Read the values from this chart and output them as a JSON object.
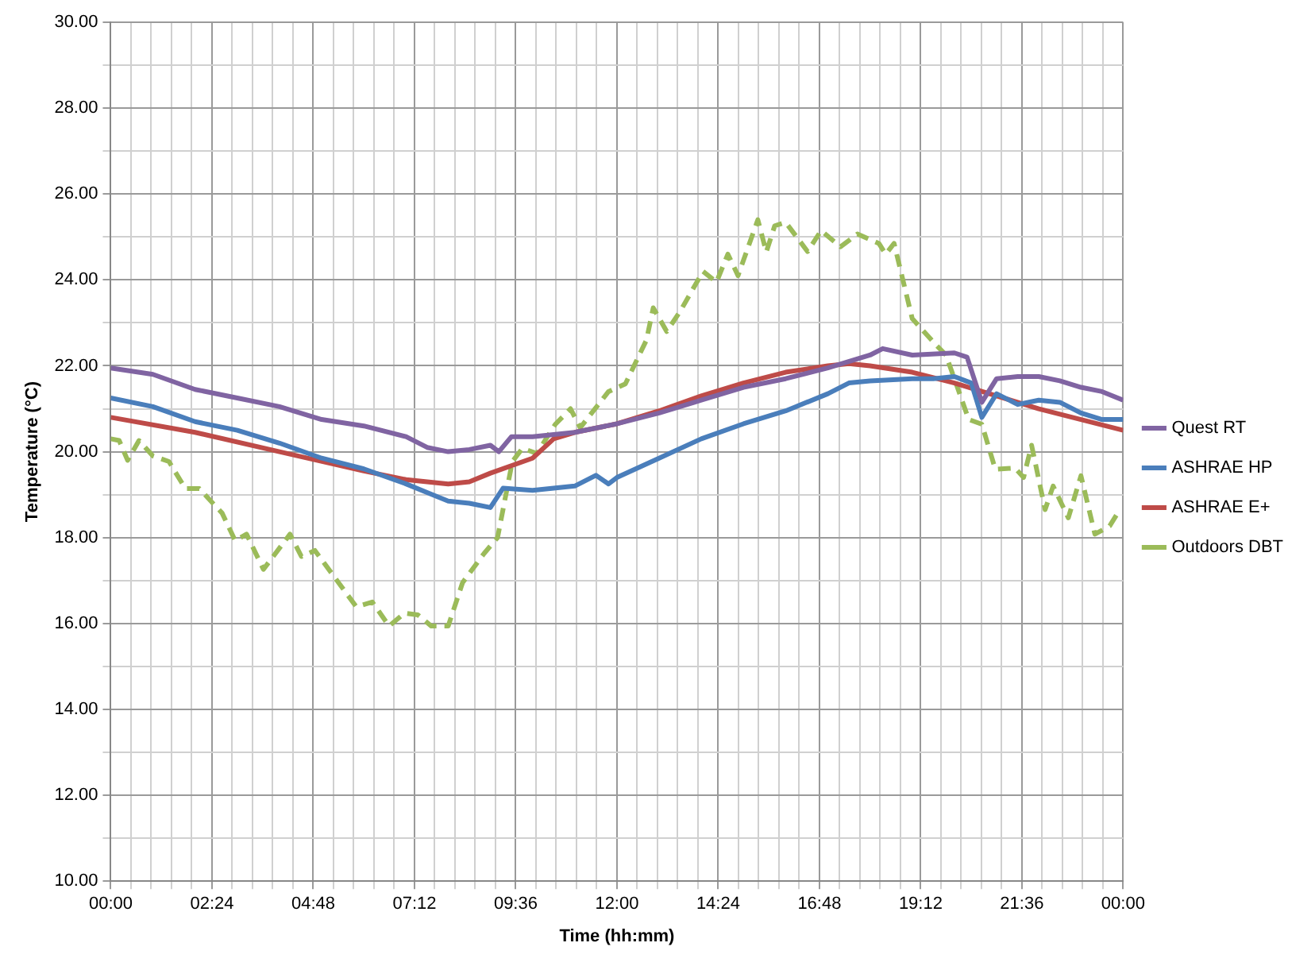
{
  "chart_data": {
    "type": "line",
    "xlabel": "Time (hh:mm)",
    "ylabel": "Temperature (°C)",
    "xlim": [
      0,
      24
    ],
    "ylim": [
      10,
      30
    ],
    "xticks": [
      {
        "value": 0,
        "label": "00:00"
      },
      {
        "value": 0.48,
        "label": null
      },
      {
        "value": 0.96,
        "label": null
      },
      {
        "value": 1.44,
        "label": null
      },
      {
        "value": 1.92,
        "label": null
      },
      {
        "value": 2.4,
        "label": "02:24"
      },
      {
        "value": 2.88,
        "label": null
      },
      {
        "value": 3.36,
        "label": null
      },
      {
        "value": 3.84,
        "label": null
      },
      {
        "value": 4.32,
        "label": null
      },
      {
        "value": 4.8,
        "label": "04:48"
      },
      {
        "value": 5.28,
        "label": null
      },
      {
        "value": 5.76,
        "label": null
      },
      {
        "value": 6.24,
        "label": null
      },
      {
        "value": 6.72,
        "label": null
      },
      {
        "value": 7.2,
        "label": "07:12"
      },
      {
        "value": 7.68,
        "label": null
      },
      {
        "value": 8.16,
        "label": null
      },
      {
        "value": 8.64,
        "label": null
      },
      {
        "value": 9.12,
        "label": null
      },
      {
        "value": 9.6,
        "label": "09:36"
      },
      {
        "value": 10.08,
        "label": null
      },
      {
        "value": 10.56,
        "label": null
      },
      {
        "value": 11.04,
        "label": null
      },
      {
        "value": 11.52,
        "label": null
      },
      {
        "value": 12,
        "label": "12:00"
      },
      {
        "value": 12.48,
        "label": null
      },
      {
        "value": 12.96,
        "label": null
      },
      {
        "value": 13.44,
        "label": null
      },
      {
        "value": 13.92,
        "label": null
      },
      {
        "value": 14.4,
        "label": "14:24"
      },
      {
        "value": 14.88,
        "label": null
      },
      {
        "value": 15.36,
        "label": null
      },
      {
        "value": 15.84,
        "label": null
      },
      {
        "value": 16.32,
        "label": null
      },
      {
        "value": 16.8,
        "label": "16:48"
      },
      {
        "value": 17.28,
        "label": null
      },
      {
        "value": 17.76,
        "label": null
      },
      {
        "value": 18.24,
        "label": null
      },
      {
        "value": 18.72,
        "label": null
      },
      {
        "value": 19.2,
        "label": "19:12"
      },
      {
        "value": 19.68,
        "label": null
      },
      {
        "value": 20.16,
        "label": null
      },
      {
        "value": 20.64,
        "label": null
      },
      {
        "value": 21.12,
        "label": null
      },
      {
        "value": 21.6,
        "label": "21:36"
      },
      {
        "value": 22.08,
        "label": null
      },
      {
        "value": 22.56,
        "label": null
      },
      {
        "value": 23.04,
        "label": null
      },
      {
        "value": 23.52,
        "label": null
      },
      {
        "value": 24,
        "label": "00:00"
      }
    ],
    "yticks": [
      {
        "value": 10,
        "label": "10.00"
      },
      {
        "value": 11,
        "label": null
      },
      {
        "value": 12,
        "label": "12.00"
      },
      {
        "value": 13,
        "label": null
      },
      {
        "value": 14,
        "label": "14.00"
      },
      {
        "value": 15,
        "label": null
      },
      {
        "value": 16,
        "label": "16.00"
      },
      {
        "value": 17,
        "label": null
      },
      {
        "value": 18,
        "label": "18.00"
      },
      {
        "value": 19,
        "label": null
      },
      {
        "value": 20,
        "label": "20.00"
      },
      {
        "value": 21,
        "label": null
      },
      {
        "value": 22,
        "label": "22.00"
      },
      {
        "value": 23,
        "label": null
      },
      {
        "value": 24,
        "label": "24.00"
      },
      {
        "value": 25,
        "label": null
      },
      {
        "value": 26,
        "label": "26.00"
      },
      {
        "value": 27,
        "label": null
      },
      {
        "value": 28,
        "label": "28.00"
      },
      {
        "value": 29,
        "label": null
      },
      {
        "value": 30,
        "label": "30.00"
      }
    ],
    "grid": true,
    "legend": "right",
    "marker": "none",
    "series": [
      {
        "name": "Quest RT",
        "color": "#8064a2",
        "line_style": "solid",
        "x": [
          0,
          1,
          2,
          3,
          4,
          5,
          6,
          7,
          7.5,
          8,
          8.5,
          9,
          9.2,
          9.5,
          10,
          11,
          12,
          13,
          14,
          15,
          16,
          17,
          18,
          18.3,
          19,
          20,
          20.3,
          20.65,
          21,
          21.5,
          22,
          22.5,
          23,
          23.5,
          24
        ],
        "values": [
          21.95,
          21.8,
          21.45,
          21.25,
          21.05,
          20.75,
          20.6,
          20.35,
          20.1,
          20.0,
          20.05,
          20.15,
          20.0,
          20.35,
          20.35,
          20.45,
          20.65,
          20.9,
          21.2,
          21.5,
          21.7,
          21.95,
          22.25,
          22.4,
          22.25,
          22.3,
          22.2,
          21.15,
          21.7,
          21.75,
          21.75,
          21.65,
          21.5,
          21.4,
          21.2
        ]
      },
      {
        "name": "ASHRAE HP",
        "color": "#4a7ebb",
        "line_style": "solid",
        "x": [
          0,
          1,
          2,
          3,
          4,
          5,
          6,
          7,
          7.5,
          8,
          8.5,
          9,
          9.3,
          10,
          11,
          11.5,
          11.8,
          12,
          13,
          14,
          15,
          16,
          17,
          17.5,
          18,
          19,
          19.5,
          20,
          20.4,
          20.65,
          21,
          21.5,
          22,
          22.5,
          23,
          23.5,
          24
        ],
        "values": [
          21.25,
          21.05,
          20.7,
          20.5,
          20.2,
          19.85,
          19.6,
          19.25,
          19.05,
          18.85,
          18.8,
          18.7,
          19.15,
          19.1,
          19.2,
          19.45,
          19.25,
          19.4,
          19.85,
          20.3,
          20.65,
          20.95,
          21.35,
          21.6,
          21.65,
          21.7,
          21.7,
          21.75,
          21.6,
          20.8,
          21.35,
          21.1,
          21.2,
          21.15,
          20.9,
          20.75,
          20.75
        ]
      },
      {
        "name": "ASHRAE E+",
        "color": "#be4b48",
        "line_style": "solid",
        "x": [
          0,
          2,
          4,
          6,
          7,
          8,
          8.5,
          9,
          10,
          10.5,
          11,
          12,
          13,
          14,
          15,
          16,
          17,
          17.5,
          18,
          19,
          20,
          21,
          22,
          23,
          24
        ],
        "values": [
          20.8,
          20.45,
          20.0,
          19.55,
          19.35,
          19.25,
          19.3,
          19.5,
          19.85,
          20.3,
          20.45,
          20.65,
          20.95,
          21.3,
          21.6,
          21.85,
          22.0,
          22.05,
          22.0,
          21.85,
          21.6,
          21.3,
          21.0,
          20.75,
          20.5
        ]
      },
      {
        "name": "Outdoors DBT",
        "color": "#9bbb59",
        "line_style": "dashed",
        "x": [
          0,
          0.2,
          0.4,
          0.67,
          1.0,
          1.38,
          1.77,
          2.1,
          2.64,
          2.95,
          3.22,
          3.62,
          4.25,
          4.52,
          4.84,
          5.82,
          6.2,
          6.6,
          6.96,
          7.28,
          7.6,
          8.0,
          8.34,
          8.85,
          9.17,
          9.52,
          9.76,
          10.1,
          10.54,
          10.9,
          11.13,
          11.8,
          12.2,
          12.7,
          12.86,
          13.18,
          13.5,
          14.04,
          14.36,
          14.63,
          14.87,
          15.34,
          15.54,
          15.74,
          16.0,
          16.52,
          16.84,
          17.3,
          17.7,
          18.21,
          18.37,
          18.57,
          19.0,
          19.55,
          19.8,
          20.34,
          20.65,
          20.97,
          21.44,
          21.64,
          21.83,
          22.15,
          22.34,
          22.7,
          23.0,
          23.33,
          23.68,
          23.92
        ],
        "values": [
          20.3,
          20.26,
          19.8,
          20.26,
          19.9,
          19.77,
          19.14,
          19.14,
          18.57,
          17.93,
          18.08,
          17.26,
          18.08,
          17.56,
          17.7,
          16.39,
          16.5,
          15.94,
          16.24,
          16.2,
          15.94,
          15.94,
          16.95,
          17.63,
          18.0,
          19.77,
          20.08,
          19.96,
          20.64,
          21.0,
          20.56,
          21.4,
          21.58,
          22.6,
          23.35,
          22.8,
          23.27,
          24.2,
          23.95,
          24.6,
          24.1,
          25.4,
          24.65,
          25.26,
          25.34,
          24.66,
          25.15,
          24.77,
          25.07,
          24.85,
          24.6,
          24.85,
          23.1,
          22.5,
          22.25,
          20.75,
          20.64,
          19.59,
          19.62,
          19.4,
          20.15,
          18.65,
          19.2,
          18.46,
          19.44,
          18.08,
          18.27,
          18.65
        ]
      }
    ]
  }
}
